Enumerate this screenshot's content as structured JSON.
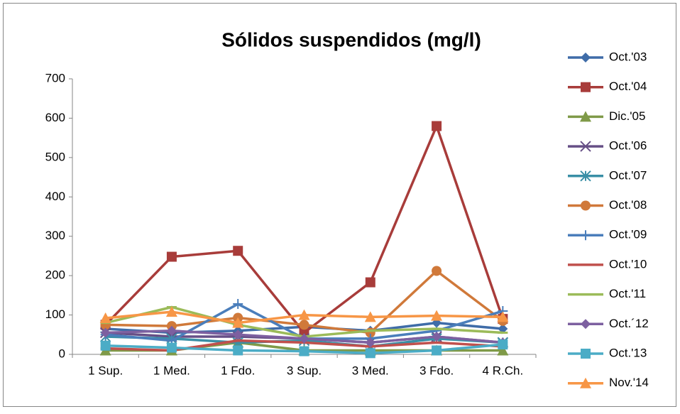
{
  "chart_data": {
    "type": "line",
    "title": "Sólidos suspendidos (mg/l)",
    "categories": [
      "1 Sup.",
      "1 Med.",
      "1 Fdo.",
      "3 Sup.",
      "3 Med.",
      "3 Fdo.",
      "4 R.Ch."
    ],
    "ylim": [
      0,
      700
    ],
    "yticks": [
      0,
      100,
      200,
      300,
      400,
      500,
      600,
      700
    ],
    "grid": false,
    "legend": "right",
    "series": [
      {
        "name": "Oct.'03",
        "color": "#3f6ca8",
        "marker": "diamond",
        "values": [
          65,
          55,
          60,
          70,
          60,
          80,
          65
        ]
      },
      {
        "name": "Oct.'04",
        "color": "#a83c3a",
        "marker": "square",
        "values": [
          75,
          248,
          263,
          55,
          183,
          580,
          90
        ]
      },
      {
        "name": "Dic.'05",
        "color": "#7f9a48",
        "marker": "triangle",
        "values": [
          10,
          10,
          30,
          10,
          10,
          10,
          10
        ]
      },
      {
        "name": "Oct.'06",
        "color": "#664f86",
        "marker": "x",
        "values": [
          55,
          45,
          45,
          40,
          30,
          45,
          30
        ]
      },
      {
        "name": "Oct.'07",
        "color": "#3a8fa6",
        "marker": "star",
        "values": [
          45,
          40,
          30,
          35,
          20,
          40,
          30
        ]
      },
      {
        "name": "Oct.'08",
        "color": "#d0793a",
        "marker": "circle",
        "values": [
          75,
          72,
          93,
          75,
          55,
          212,
          85
        ]
      },
      {
        "name": "Oct.'09",
        "color": "#4a7ebb",
        "marker": "plus",
        "values": [
          50,
          35,
          128,
          40,
          40,
          60,
          110
        ]
      },
      {
        "name": "Oct.'10",
        "color": "#c0504d",
        "marker": "dash",
        "values": [
          15,
          10,
          35,
          30,
          20,
          30,
          20
        ]
      },
      {
        "name": "Oct.'11",
        "color": "#9bbb59",
        "marker": "dash",
        "values": [
          80,
          120,
          75,
          45,
          60,
          65,
          55
        ]
      },
      {
        "name": "Oct.´12",
        "color": "#7d60a0",
        "marker": "diamond",
        "values": [
          55,
          60,
          50,
          40,
          30,
          45,
          30
        ]
      },
      {
        "name": "Oct.'13",
        "color": "#4bacc6",
        "marker": "square",
        "values": [
          22,
          17,
          10,
          8,
          3,
          10,
          25
        ]
      },
      {
        "name": "Nov.'14",
        "color": "#f79646",
        "marker": "triangle",
        "values": [
          92,
          108,
          80,
          100,
          95,
          98,
          95
        ]
      }
    ]
  }
}
